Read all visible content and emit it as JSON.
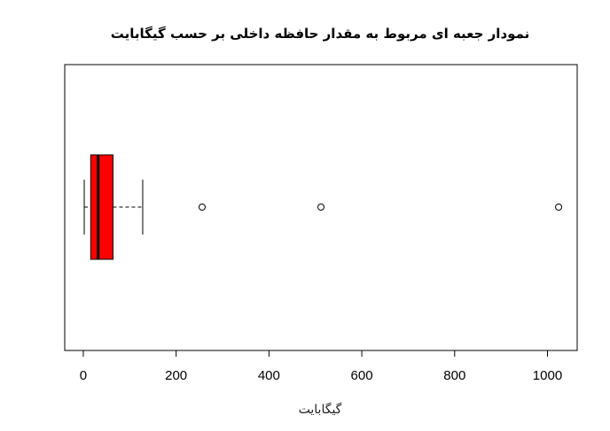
{
  "chart_data": {
    "type": "boxplot",
    "orientation": "horizontal",
    "title": "نمودار جعبه ای مربوط به مقدار حافظه داخلی بر حسب گیگابایت",
    "xlabel": "گیگابایت",
    "ylabel": "",
    "xlim": [
      -40,
      1064
    ],
    "xticks": [
      0,
      200,
      400,
      600,
      800,
      1000
    ],
    "box": {
      "whisker_low": 2,
      "q1": 16,
      "median": 32,
      "q3": 64,
      "whisker_high": 128,
      "outliers": [
        256,
        512,
        1024
      ]
    },
    "box_color": "#ff0000",
    "grid": false
  }
}
